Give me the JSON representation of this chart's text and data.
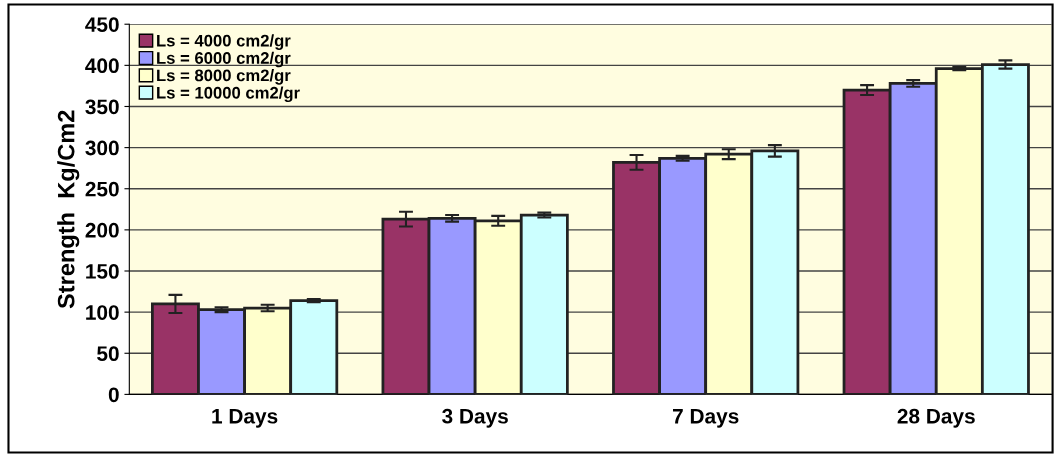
{
  "chart_data": {
    "type": "bar",
    "ylabel": "Strength  Kg/Cm2",
    "categories": [
      "1 Days",
      "3 Days",
      "7 Days",
      "28 Days"
    ],
    "series": [
      {
        "name": "Ls = 4000 cm2/gr",
        "color": "#993366",
        "values": [
          110,
          213,
          282,
          370
        ],
        "errors": [
          11,
          9,
          9,
          6
        ]
      },
      {
        "name": "Ls = 6000 cm2/gr",
        "color": "#9999ff",
        "values": [
          103,
          214,
          287,
          378
        ],
        "errors": [
          3,
          4,
          3,
          4
        ]
      },
      {
        "name": "Ls = 8000 cm2/gr",
        "color": "#ffffcc",
        "values": [
          105,
          211,
          292,
          396
        ],
        "errors": [
          4,
          6,
          6,
          2
        ]
      },
      {
        "name": "Ls = 10000 cm2/gr",
        "color": "#ccffff",
        "values": [
          114,
          218,
          296,
          401
        ],
        "errors": [
          2,
          3,
          7,
          5
        ]
      }
    ],
    "ylim": [
      0,
      450
    ],
    "yticks": [
      0,
      50,
      100,
      150,
      200,
      250,
      300,
      350,
      400,
      450
    ],
    "grid": "y",
    "legend": "top left"
  }
}
